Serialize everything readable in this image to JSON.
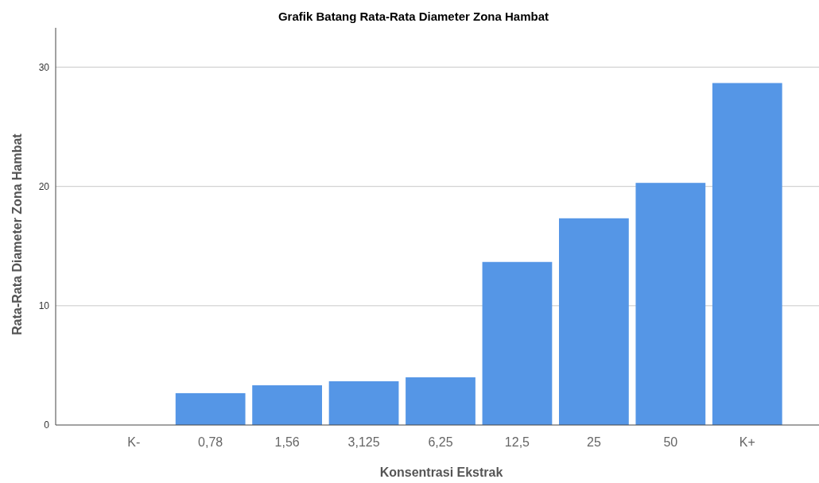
{
  "chart_data": {
    "type": "bar",
    "title": "Grafik Batang Rata-Rata Diameter Zona Hambat",
    "xlabel": "Konsentrasi Ekstrak",
    "ylabel": "Rata-Rata Diameter Zona Hambat",
    "categories": [
      "K-",
      "0,78",
      "1,56",
      "3,125",
      "6,25",
      "12,5",
      "25",
      "50",
      "K+"
    ],
    "values": [
      0,
      2.67,
      3.33,
      3.67,
      4.0,
      13.67,
      17.33,
      20.3,
      28.67
    ],
    "color": "#5596e6",
    "ylim": [
      0,
      33.3
    ],
    "yticks": [
      0,
      10,
      20,
      30
    ],
    "grid": "y"
  }
}
